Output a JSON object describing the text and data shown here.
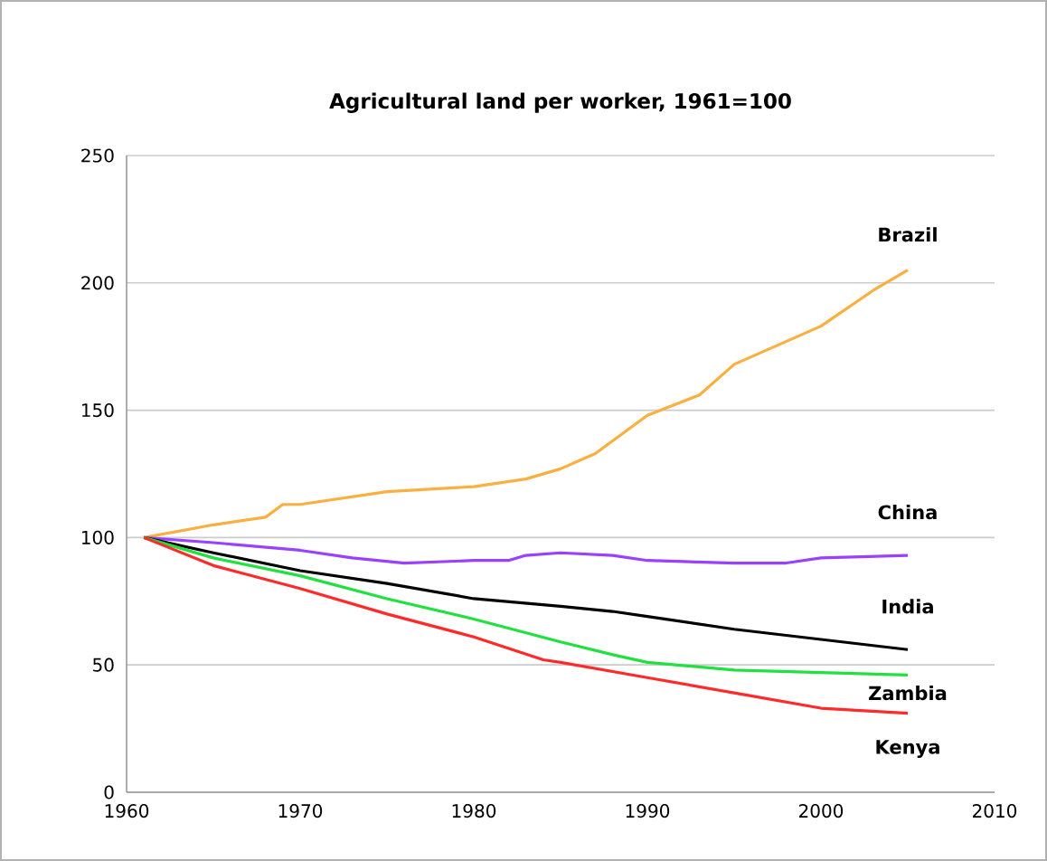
{
  "chart_data": {
    "type": "line",
    "title": "Agricultural land per worker, 1961=100",
    "xlim": [
      1960,
      2010
    ],
    "xticks": [
      1960,
      1970,
      1980,
      1990,
      2000,
      2010
    ],
    "ylim": [
      0,
      250
    ],
    "yticks": [
      0,
      50,
      100,
      150,
      200,
      250
    ],
    "grid": "y",
    "legend": false,
    "marker": "none",
    "line_style": "solid",
    "series": [
      {
        "name": "Brazil",
        "color": "#f9b040",
        "x": [
          1961,
          1965,
          1968,
          1969,
          1970,
          1975,
          1980,
          1983,
          1985,
          1987,
          1990,
          1993,
          1995,
          2000,
          2003,
          2005
        ],
        "values": [
          100,
          105,
          108,
          113,
          113,
          118,
          120,
          123,
          127,
          133,
          148,
          156,
          168,
          183,
          197,
          205
        ]
      },
      {
        "name": "China",
        "color": "#9a40ff",
        "x": [
          1961,
          1965,
          1970,
          1973,
          1976,
          1980,
          1982,
          1983,
          1985,
          1988,
          1990,
          1995,
          1998,
          2000,
          2005
        ],
        "values": [
          100,
          98,
          95,
          92,
          90,
          91,
          91,
          93,
          94,
          93,
          91,
          90,
          90,
          92,
          93
        ]
      },
      {
        "name": "India",
        "color": "#000000",
        "x": [
          1961,
          1965,
          1970,
          1975,
          1980,
          1985,
          1988,
          1990,
          1995,
          2000,
          2005
        ],
        "values": [
          100,
          94,
          87,
          82,
          76,
          73,
          71,
          69,
          64,
          60,
          56
        ]
      },
      {
        "name": "Zambia",
        "color": "#22e040",
        "x": [
          1961,
          1965,
          1970,
          1975,
          1980,
          1985,
          1988,
          1990,
          1995,
          2000,
          2005
        ],
        "values": [
          100,
          92,
          85,
          76,
          68,
          59,
          54,
          51,
          48,
          47,
          46
        ]
      },
      {
        "name": "Kenya",
        "color": "#ff2a2a",
        "x": [
          1961,
          1965,
          1970,
          1975,
          1980,
          1984,
          1985,
          1990,
          1995,
          2000,
          2005
        ],
        "values": [
          100,
          89,
          80,
          70,
          61,
          52,
          51,
          45,
          39,
          33,
          31
        ]
      }
    ]
  }
}
